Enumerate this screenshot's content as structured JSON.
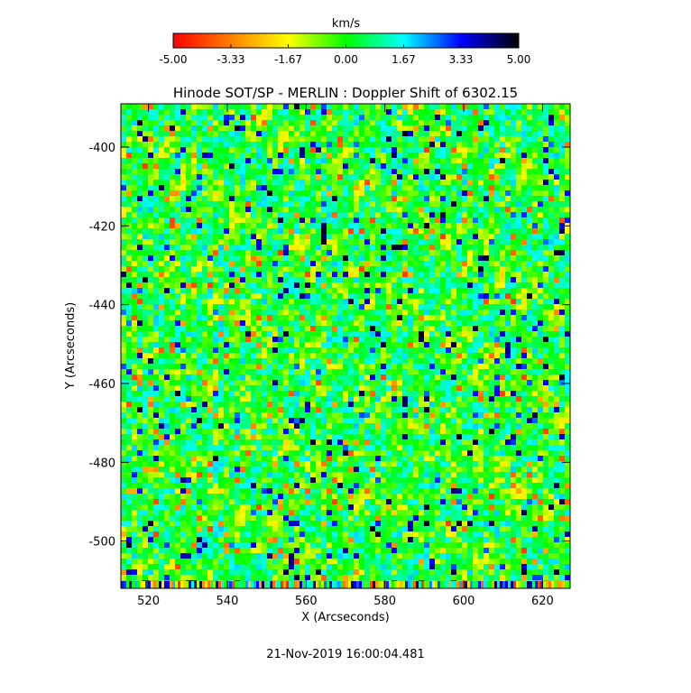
{
  "chart_data": {
    "type": "heatmap",
    "title": "Hinode SOT/SP - MERLIN : Doppler Shift of 6302.15",
    "xlabel": "X (Arcseconds)",
    "ylabel": "Y (Arcseconds)",
    "xlim": [
      513,
      627
    ],
    "ylim": [
      -512,
      -389
    ],
    "x_ticks": [
      "520",
      "540",
      "560",
      "580",
      "600",
      "620"
    ],
    "x_tick_values": [
      520,
      540,
      560,
      580,
      600,
      620
    ],
    "y_ticks": [
      "-400",
      "-420",
      "-440",
      "-460",
      "-480",
      "-500"
    ],
    "y_tick_values": [
      -400,
      -420,
      -440,
      -460,
      -480,
      -500
    ],
    "colorbar": {
      "label": "km/s",
      "range": [
        -5,
        5
      ],
      "tick_labels": [
        "-5.00",
        "-3.33",
        "-1.67",
        "0.00",
        "1.67",
        "3.33",
        "5.00"
      ],
      "tick_values": [
        -5,
        -3.33,
        -1.67,
        0,
        1.67,
        3.33,
        5
      ],
      "colors": [
        "#ff0000",
        "#ff8000",
        "#ffff00",
        "#00ff00",
        "#00ffff",
        "#0000ff",
        "#000000"
      ]
    },
    "dominant_value_range": [
      -1.67,
      1.67
    ],
    "grid": false
  },
  "footer": {
    "timestamp": "21-Nov-2019 16:00:04.481"
  }
}
